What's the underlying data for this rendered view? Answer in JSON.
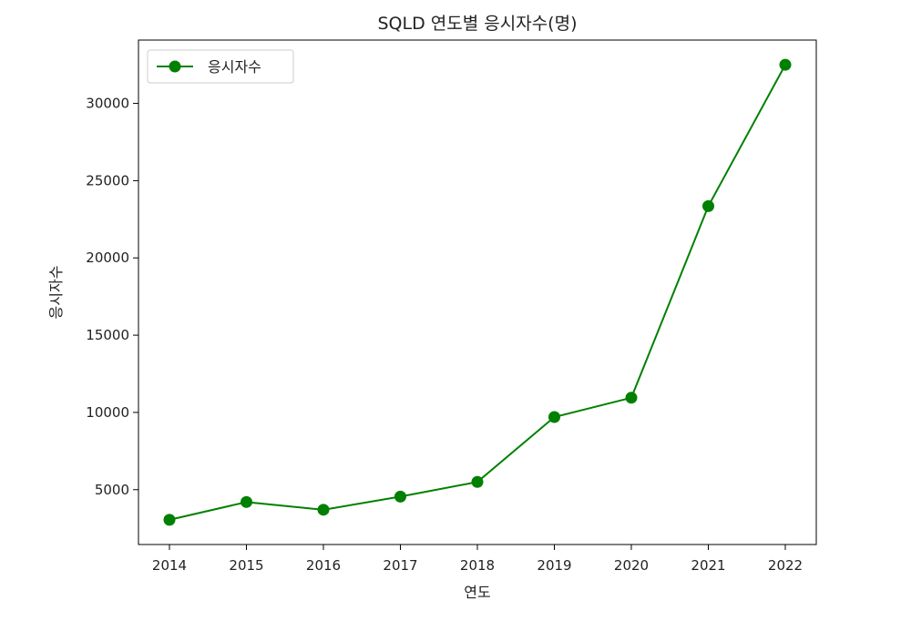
{
  "chart_data": {
    "type": "line",
    "title": "SQLD 연도별 응시자수(명)",
    "xlabel": "연도",
    "ylabel": "응시자수",
    "x": [
      "2014",
      "2015",
      "2016",
      "2017",
      "2018",
      "2019",
      "2020",
      "2021",
      "2022"
    ],
    "series": [
      {
        "name": "응시자수",
        "values": [
          3050,
          4200,
          3700,
          4550,
          5500,
          9700,
          10950,
          23350,
          32500
        ],
        "color": "#008000",
        "marker": "circle"
      }
    ],
    "yticks": [
      5000,
      10000,
      15000,
      20000,
      25000,
      30000
    ],
    "ylim": [
      1450,
      34100
    ],
    "grid": false,
    "legend_position": "top-left"
  }
}
